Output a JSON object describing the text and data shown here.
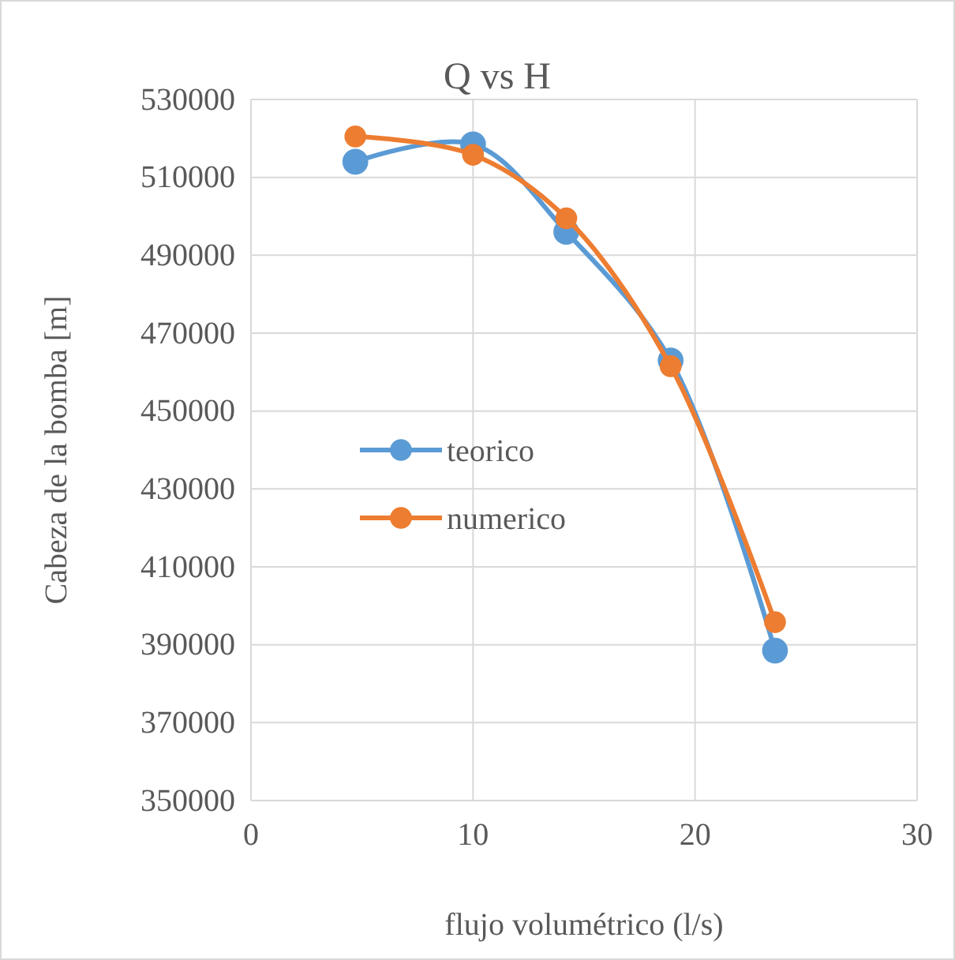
{
  "chart_data": {
    "type": "line",
    "title": "Q vs H",
    "xlabel": "flujo volumétrico (l/s)",
    "ylabel": "Cabeza de la bomba [m]",
    "xlim": [
      0,
      30
    ],
    "xticks": [
      0,
      10,
      20,
      30
    ],
    "ylim": [
      350000,
      530000
    ],
    "yticks": [
      350000,
      370000,
      390000,
      410000,
      430000,
      450000,
      470000,
      490000,
      510000,
      530000
    ],
    "grid": true,
    "legend": "left",
    "marker": "circle",
    "series": [
      {
        "name": "teorico",
        "color": "#5b9bd5",
        "x": [
          4.7,
          10,
          14.2,
          18.9,
          23.6
        ],
        "values": [
          514000,
          518500,
          496000,
          463000,
          388500
        ]
      },
      {
        "name": "numerico",
        "color": "#ed7d31",
        "x": [
          4.7,
          10,
          14.2,
          18.9,
          23.6
        ],
        "values": [
          520500,
          515800,
          499500,
          461500,
          395800
        ]
      }
    ]
  }
}
